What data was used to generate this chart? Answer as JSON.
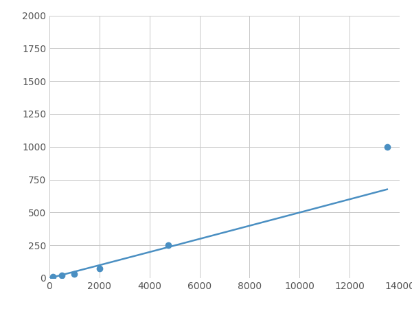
{
  "x": [
    125,
    500,
    1000,
    2000,
    4750,
    13500
  ],
  "y": [
    10,
    20,
    30,
    75,
    250,
    1000
  ],
  "line_color": "#4a8fc2",
  "marker_color": "#4a8fc2",
  "marker_size": 6,
  "linewidth": 1.8,
  "xlim": [
    0,
    14000
  ],
  "ylim": [
    0,
    2000
  ],
  "xticks": [
    0,
    2000,
    4000,
    6000,
    8000,
    10000,
    12000,
    14000
  ],
  "yticks": [
    0,
    250,
    500,
    750,
    1000,
    1250,
    1500,
    1750,
    2000
  ],
  "grid_color": "#c8c8c8",
  "background_color": "#ffffff",
  "figsize": [
    6.0,
    4.5
  ],
  "dpi": 100
}
